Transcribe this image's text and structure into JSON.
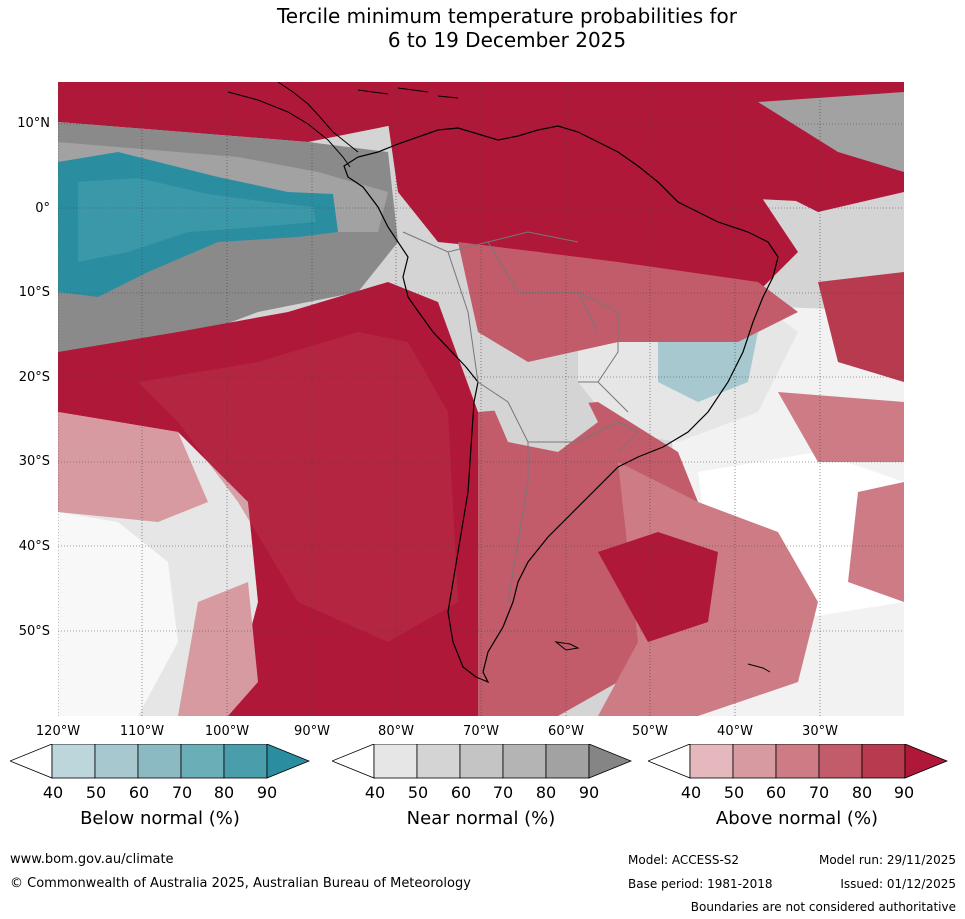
{
  "title_line1": "Tercile minimum temperature probabilities for",
  "title_line2": "6 to 19 December 2025",
  "lat_labels": [
    "10°N",
    "0°",
    "10°S",
    "20°S",
    "30°S",
    "40°S",
    "50°S"
  ],
  "lon_labels": [
    "120°W",
    "110°W",
    "100°W",
    "90°W",
    "80°W",
    "70°W",
    "60°W",
    "50°W",
    "40°W",
    "30°W"
  ],
  "legends": [
    {
      "title": "Below normal (%)",
      "ticks": [
        "40",
        "50",
        "60",
        "70",
        "80",
        "90"
      ],
      "colors": [
        "#ffffff",
        "#bcd6dc",
        "#a6c8ce",
        "#8bbac2",
        "#6aaeb8",
        "#4a9eac",
        "#2a8ea0"
      ]
    },
    {
      "title": "Near normal (%)",
      "ticks": [
        "40",
        "50",
        "60",
        "70",
        "80",
        "90"
      ],
      "colors": [
        "#ffffff",
        "#e6e6e6",
        "#d4d4d4",
        "#c4c4c4",
        "#b4b4b4",
        "#a2a2a2",
        "#858585"
      ]
    },
    {
      "title": "Above normal (%)",
      "ticks": [
        "40",
        "50",
        "60",
        "70",
        "80",
        "90"
      ],
      "colors": [
        "#ffffff",
        "#e4b8bd",
        "#d89aa1",
        "#cd7c86",
        "#c25c6a",
        "#b83a4e",
        "#b0183a"
      ]
    }
  ],
  "footer": {
    "website": "www.bom.gov.au/climate",
    "copyright": "© Commonwealth of Australia 2025, Australian Bureau of Meteorology",
    "model": "Model: ACCESS-S2",
    "base_period": "Base period: 1981-2018",
    "model_run": "Model run: 29/11/2025",
    "issued": "Issued: 01/12/2025",
    "disclaimer": "Boundaries are not considered authoritative"
  },
  "colors": {
    "above_strong": "#b0183a",
    "near_strong": "#858585",
    "below_strong": "#2a8ea0"
  }
}
